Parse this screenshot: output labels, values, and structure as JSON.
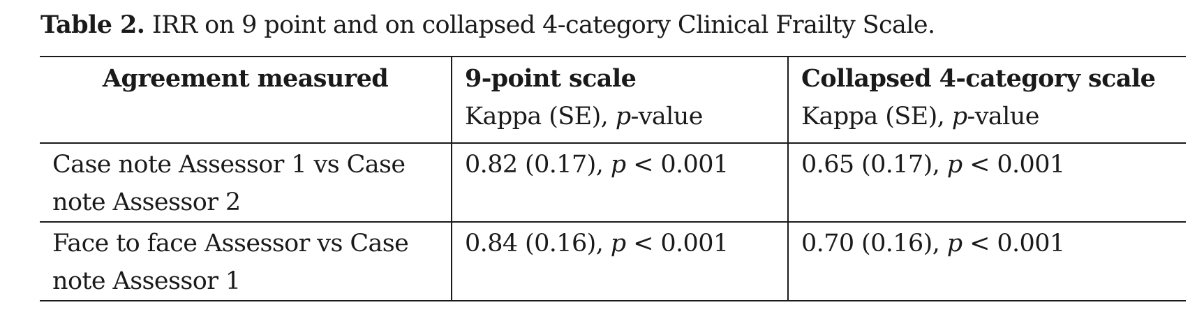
{
  "caption": {
    "label": "Table 2.",
    "text": " IRR on 9 point and on collapsed 4-category Clinical Frailty Scale."
  },
  "table": {
    "headers": [
      {
        "title": "Agreement measured",
        "sub_pre": "",
        "sub_ital": "",
        "sub_post": ""
      },
      {
        "title": "9-point scale",
        "sub_pre": "Kappa (SE), ",
        "sub_ital": "p",
        "sub_post": "-value"
      },
      {
        "title": "Collapsed 4-category scale",
        "sub_pre": "Kappa (SE), ",
        "sub_ital": "p",
        "sub_post": "-value"
      }
    ],
    "rows": [
      {
        "agreement": "Case note Assessor 1 vs Case note Assessor 2",
        "nine_point": {
          "kappa": "0.82 (0.17), ",
          "p": "p",
          "pval": " < 0.001"
        },
        "collapsed": {
          "kappa": "0.65 (0.17), ",
          "p": "p",
          "pval": " < 0.001"
        }
      },
      {
        "agreement": "Face to face Assessor vs Case note Assessor 1",
        "nine_point": {
          "kappa": "0.84 (0.16), ",
          "p": "p",
          "pval": " < 0.001"
        },
        "collapsed": {
          "kappa": "0.70 (0.16), ",
          "p": "p",
          "pval": " < 0.001"
        }
      }
    ]
  }
}
